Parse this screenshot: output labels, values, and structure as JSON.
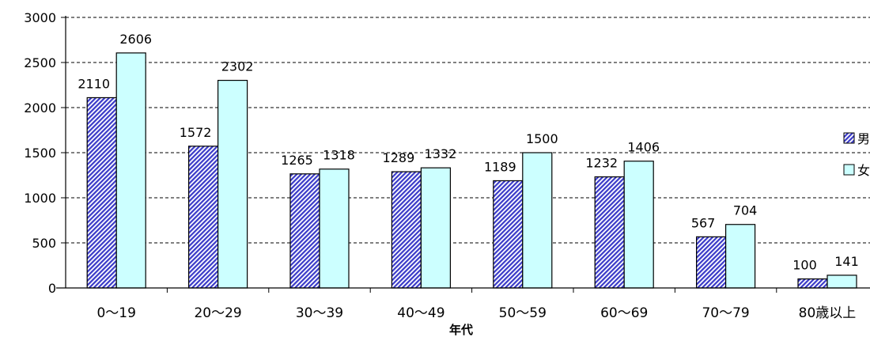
{
  "chart_data": {
    "type": "bar",
    "title": "",
    "xlabel": "年代",
    "ylabel": "",
    "ylim": [
      0,
      3000
    ],
    "yticks": [
      0,
      500,
      1000,
      1500,
      2000,
      2500,
      3000
    ],
    "grid": true,
    "legend_position": "right",
    "categories": [
      "0〜19",
      "20〜29",
      "30〜39",
      "40〜49",
      "50〜59",
      "60〜69",
      "70〜79",
      "80歳以上"
    ],
    "series": [
      {
        "name": "男",
        "values": [
          2110,
          1572,
          1265,
          1289,
          1189,
          1232,
          567,
          100
        ],
        "color": "#3a3ac8",
        "pattern": "diagonal-hatch"
      },
      {
        "name": "女",
        "values": [
          2606,
          2302,
          1318,
          1332,
          1500,
          1406,
          704,
          141
        ],
        "color": "#ccffff",
        "pattern": "solid"
      }
    ]
  }
}
